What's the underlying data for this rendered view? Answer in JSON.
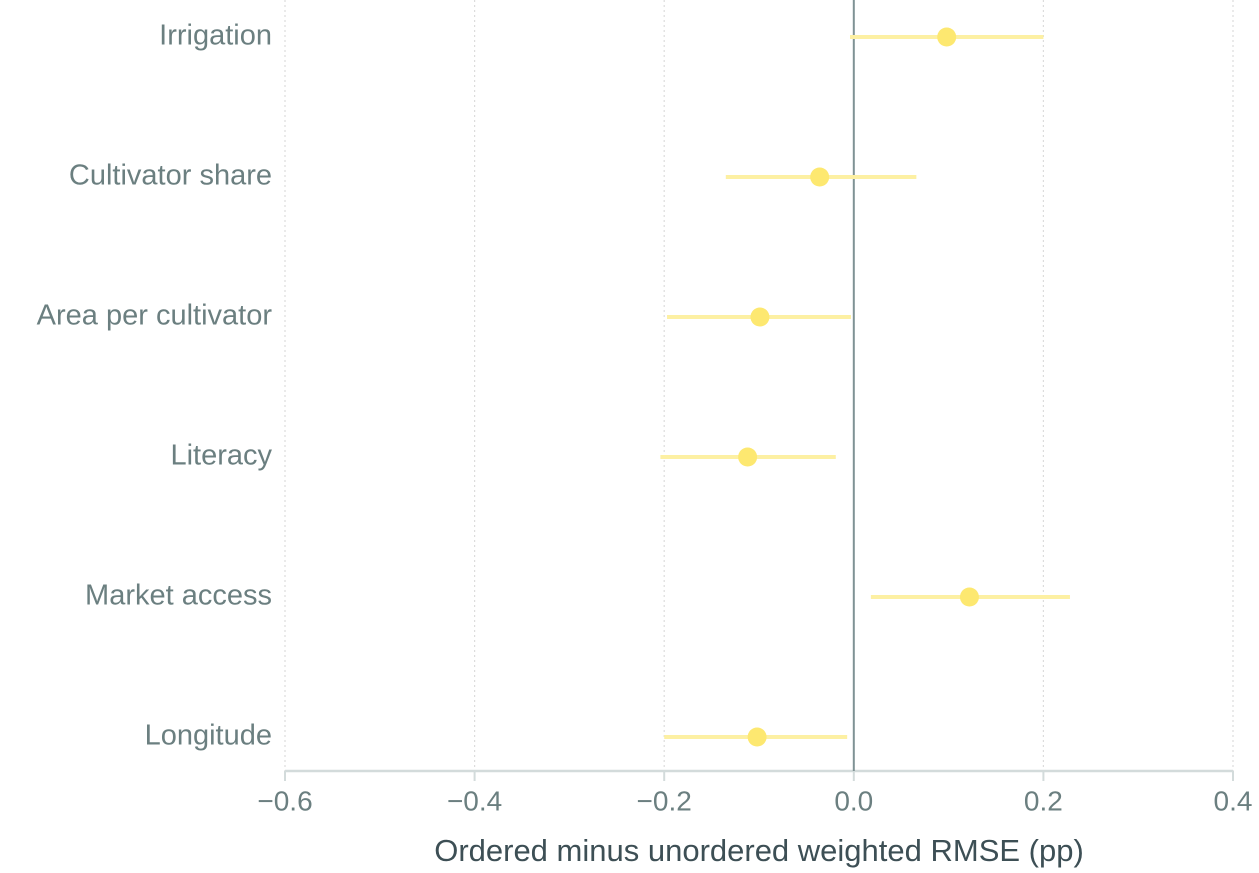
{
  "chart_data": {
    "type": "dot_interval",
    "x_label": "Ordered minus unordered weighted RMSE (pp)",
    "categories": [
      "Irrigation",
      "Cultivator share",
      "Area per cultivator",
      "Literacy",
      "Market access",
      "Longitude"
    ],
    "values": [
      0.098,
      -0.036,
      -0.099,
      -0.112,
      0.122,
      -0.102
    ],
    "lower": [
      -0.004,
      -0.135,
      -0.197,
      -0.204,
      0.018,
      -0.2
    ],
    "upper": [
      0.2,
      0.066,
      -0.003,
      -0.019,
      0.228,
      -0.007
    ],
    "color": "#fde870",
    "interval_color": "#fdf0a3",
    "xlim": [
      -0.6,
      0.4
    ],
    "xticks": [
      {
        "value": -0.6,
        "label": "−0.6"
      },
      {
        "value": -0.4,
        "label": "−0.4"
      },
      {
        "value": -0.2,
        "label": "−0.2"
      },
      {
        "value": 0,
        "label": "0.0"
      },
      0.2,
      0.4
    ],
    "reference_line": 0,
    "grid": true
  }
}
